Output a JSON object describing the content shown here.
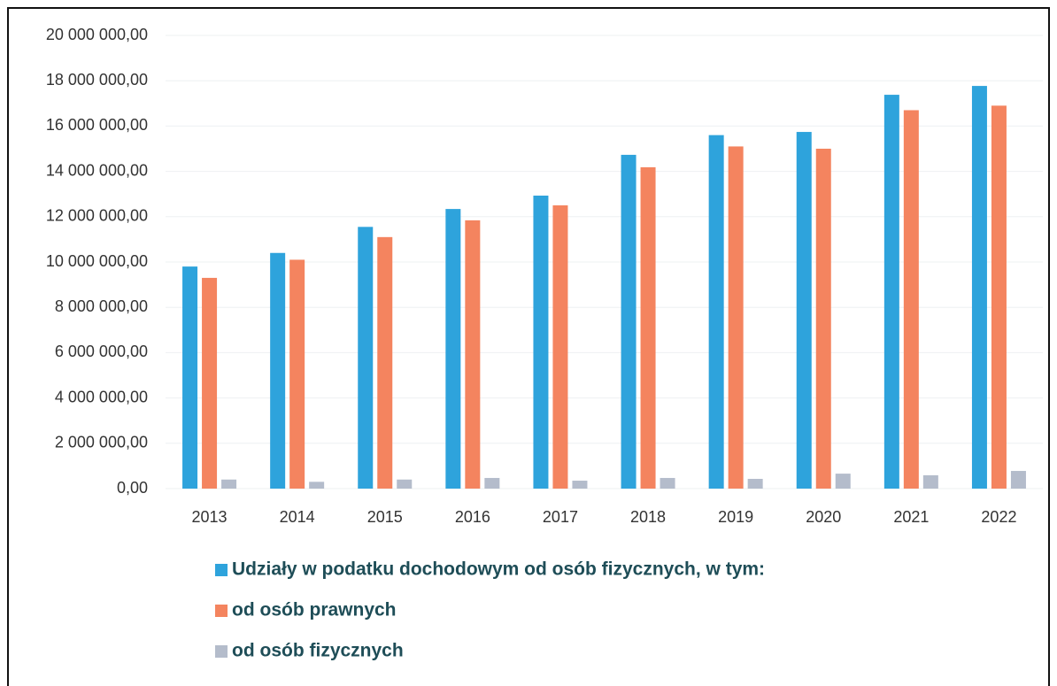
{
  "chart_data": {
    "type": "bar",
    "categories": [
      "2013",
      "2014",
      "2015",
      "2016",
      "2017",
      "2018",
      "2019",
      "2020",
      "2021",
      "2022"
    ],
    "series": [
      {
        "name": "Udziały w podatku dochodowym od osób fizycznych, w tym:",
        "color": "#2ea3dc",
        "values": [
          9800000,
          10400000,
          11550000,
          12340000,
          12930000,
          14730000,
          15600000,
          15740000,
          17380000,
          17770000
        ]
      },
      {
        "name": "od osób prawnych",
        "color": "#f4845f",
        "values": [
          9300000,
          10100000,
          11100000,
          11840000,
          12500000,
          14180000,
          15100000,
          15000000,
          16700000,
          16900000
        ]
      },
      {
        "name": "od osób fizycznych",
        "color": "#b4bccb",
        "values": [
          400000,
          300000,
          400000,
          470000,
          350000,
          470000,
          430000,
          660000,
          590000,
          780000
        ]
      }
    ],
    "ylim": [
      0,
      20000000
    ],
    "yticks": [
      {
        "value": 0,
        "label": "0,00"
      },
      {
        "value": 2000000,
        "label": "2 000 000,00"
      },
      {
        "value": 4000000,
        "label": "4 000 000,00"
      },
      {
        "value": 6000000,
        "label": "6 000 000,00"
      },
      {
        "value": 8000000,
        "label": "8 000 000,00"
      },
      {
        "value": 10000000,
        "label": "10 000 000,00"
      },
      {
        "value": 12000000,
        "label": "12 000 000,00"
      },
      {
        "value": 14000000,
        "label": "14 000 000,00"
      },
      {
        "value": 16000000,
        "label": "16 000 000,00"
      },
      {
        "value": 18000000,
        "label": "18 000 000,00"
      },
      {
        "value": 20000000,
        "label": "20 000 000,00"
      }
    ],
    "grid": true
  }
}
